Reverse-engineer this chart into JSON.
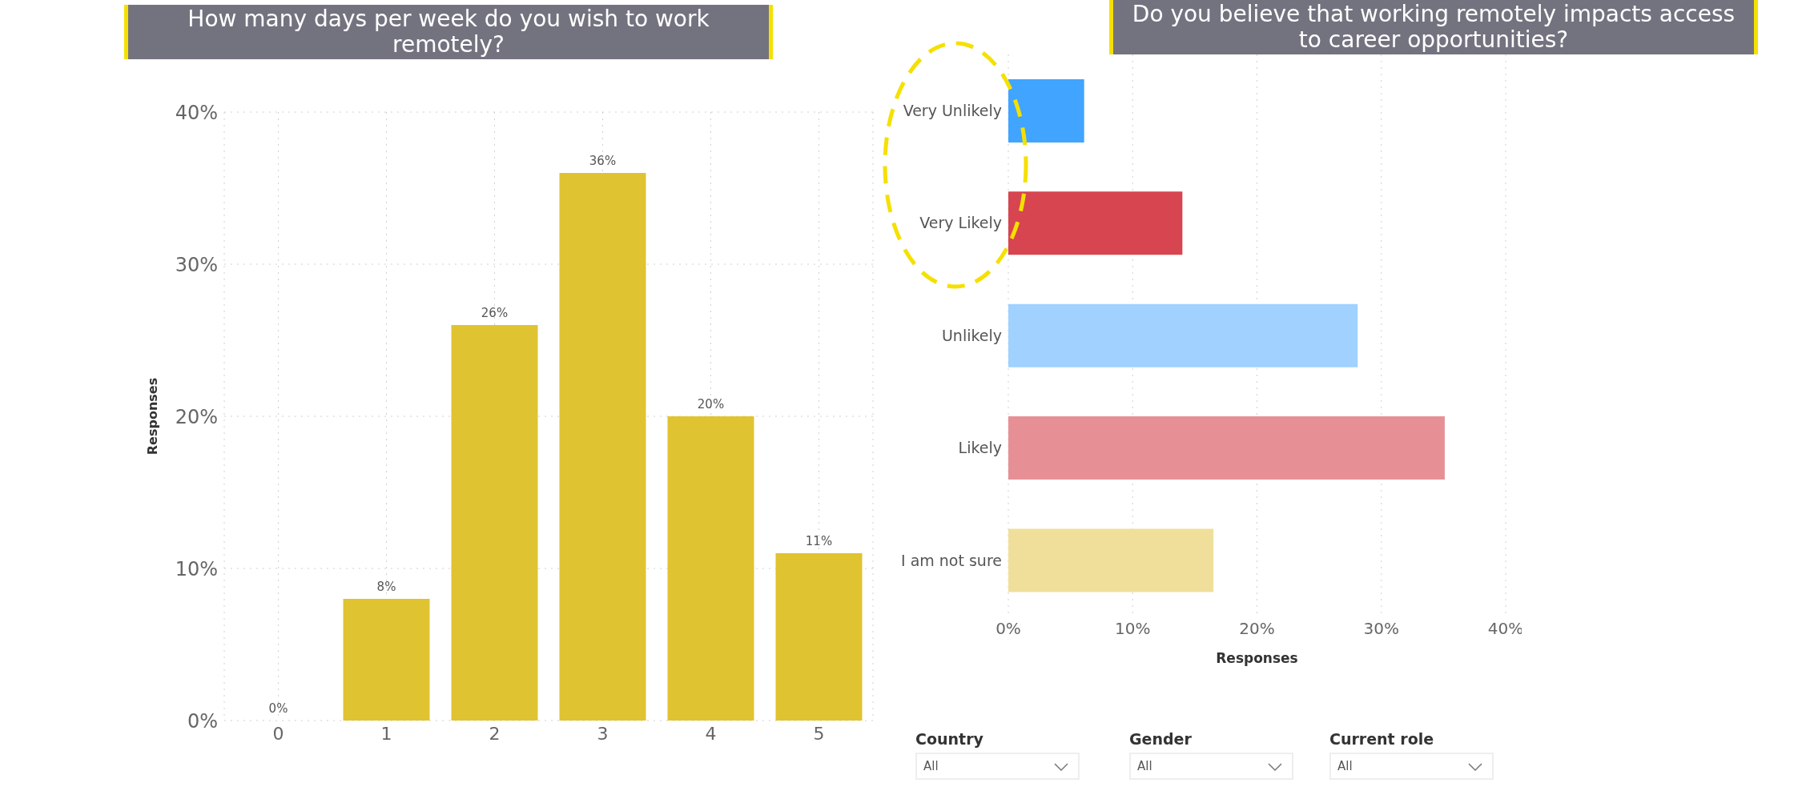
{
  "chart_data": [
    {
      "type": "bar",
      "title": "How many days per week do you wish to work remotely?",
      "ylabel": "Responses",
      "categories": [
        "0",
        "1",
        "2",
        "3",
        "4",
        "5"
      ],
      "values": [
        0,
        8,
        26,
        36,
        20,
        11
      ],
      "value_labels": [
        "0%",
        "8%",
        "26%",
        "36%",
        "20%",
        "11%"
      ],
      "color": "#e0c331",
      "ylim": [
        0,
        40
      ],
      "yticks": [
        {
          "value": 0,
          "label": "0%"
        },
        {
          "value": 10,
          "label": "10%"
        },
        {
          "value": 20,
          "label": "20%"
        },
        {
          "value": 30,
          "label": "30%"
        },
        {
          "value": 40,
          "label": "40%"
        }
      ],
      "grid": true
    },
    {
      "type": "bar",
      "orientation": "horizontal",
      "title": "Do you believe that working remotely impacts access to career opportunities?",
      "xlabel": "Responses",
      "categories": [
        "Very Unlikely",
        "Very Likely",
        "Unlikely",
        "Likely",
        "I am not sure"
      ],
      "values": [
        6.1,
        14,
        28.1,
        35.1,
        16.5
      ],
      "colors": [
        "#41a4ff",
        "#d64550",
        "#a0d1ff",
        "#e69096",
        "#f0df9a"
      ],
      "xlim": [
        0,
        40
      ],
      "xticks": [
        {
          "value": 0,
          "label": "0%"
        },
        {
          "value": 10,
          "label": "10%"
        },
        {
          "value": 20,
          "label": "20%"
        },
        {
          "value": 30,
          "label": "30%"
        },
        {
          "value": 40,
          "label": "40%"
        }
      ],
      "grid": "x",
      "annotations": [
        "Country",
        "All",
        "Gender",
        "All",
        "Current role",
        "All"
      ]
    }
  ]
}
